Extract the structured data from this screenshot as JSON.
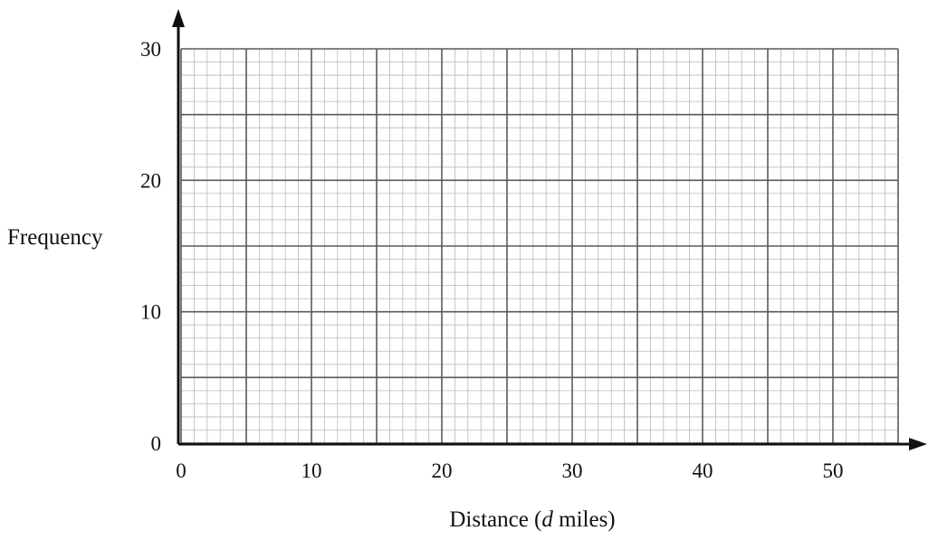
{
  "chart_data": {
    "type": "scatter",
    "title": "",
    "xlabel_text": "Distance (",
    "xlabel_var": "d",
    "xlabel_unit": " miles)",
    "ylabel": "Frequency",
    "xlim": [
      0,
      55
    ],
    "ylim": [
      0,
      30
    ],
    "x_ticks": [
      "0",
      "10",
      "20",
      "30",
      "40",
      "50"
    ],
    "y_ticks": [
      "0",
      "10",
      "20",
      "30"
    ],
    "series": [],
    "grid": true,
    "grid_minor_step": 1,
    "grid_major_step": 5,
    "colors": {
      "axis": "#111111",
      "grid_minor": "#b9b9b9",
      "grid_major": "#5a5a5a"
    }
  }
}
